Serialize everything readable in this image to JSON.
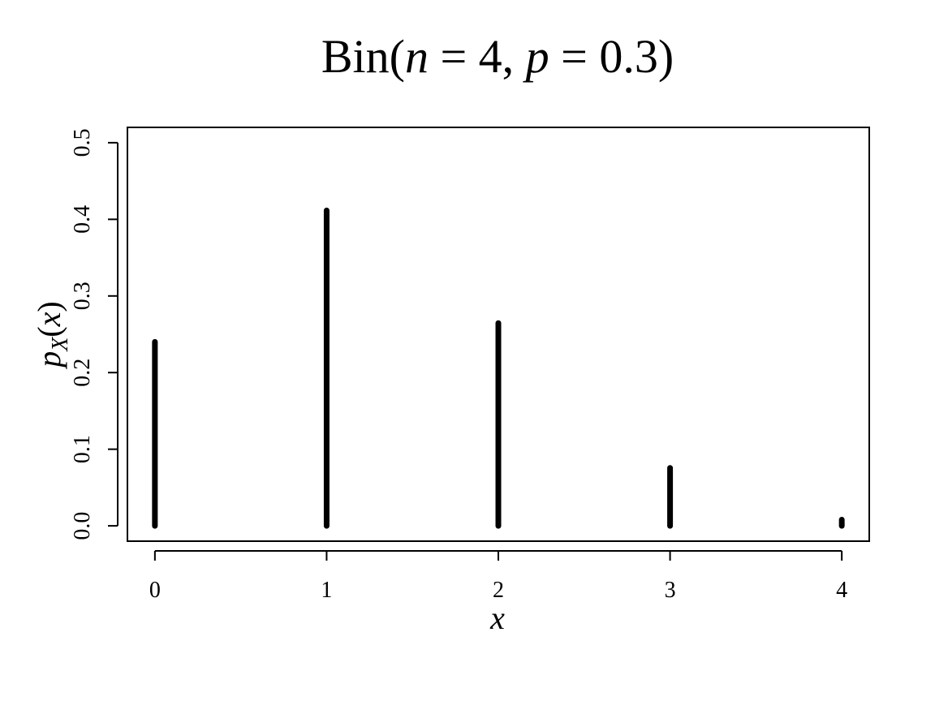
{
  "chart_data": {
    "type": "bar",
    "title": {
      "prefix": "Bin(",
      "n_symbol": "n",
      "eq1": " = 4, ",
      "p_symbol": "p",
      "eq2": " = 0.3)"
    },
    "xlabel": "x",
    "ylabel": {
      "base": "p",
      "subscript": "X",
      "arg_open": "(",
      "arg": "x",
      "arg_close": ")"
    },
    "x": [
      0,
      1,
      2,
      3,
      4
    ],
    "values": [
      0.2401,
      0.4116,
      0.2646,
      0.0756,
      0.0081
    ],
    "xlim": [
      -0.16,
      4.16
    ],
    "ylim": [
      -0.02,
      0.52
    ],
    "x_ticks": [
      "0",
      "1",
      "2",
      "3",
      "4"
    ],
    "y_ticks": [
      "0.0",
      "0.1",
      "0.2",
      "0.3",
      "0.4",
      "0.5"
    ],
    "grid": false,
    "color": "#000000"
  }
}
